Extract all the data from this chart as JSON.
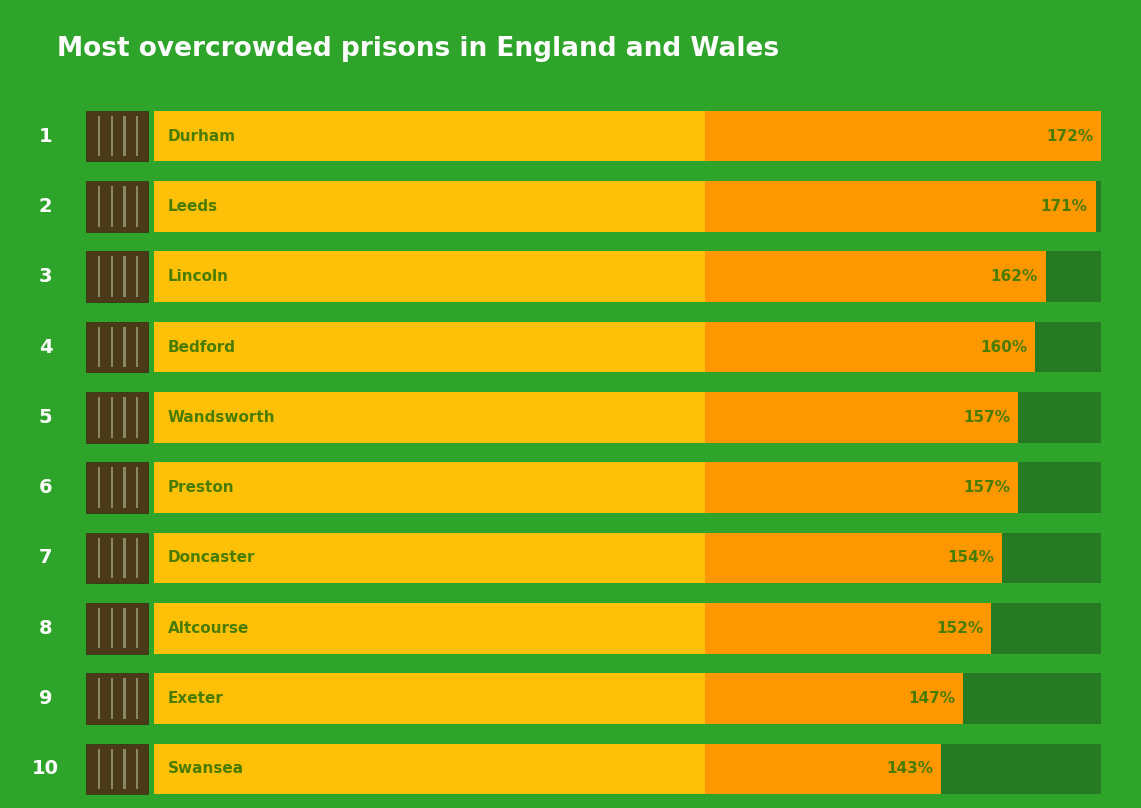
{
  "title": "Most overcrowded prisons in England and Wales",
  "title_color": "#FFFFFF",
  "background_color": "#2EA52A",
  "bar_yellow_color": "#FFC107",
  "bar_orange_color": "#FF9800",
  "dark_green_color": "#277A24",
  "label_color": "#4A7C00",
  "percent_color": "#4A7C00",
  "rank_color": "#FFFFFF",
  "prisons": [
    "Durham",
    "Leeds",
    "Lincoln",
    "Bedford",
    "Wandsworth",
    "Preston",
    "Doncaster",
    "Altcourse",
    "Exeter",
    "Swansea"
  ],
  "values": [
    172,
    171,
    162,
    160,
    157,
    157,
    154,
    152,
    147,
    143
  ],
  "scale_max": 172,
  "yellow_split": 100
}
